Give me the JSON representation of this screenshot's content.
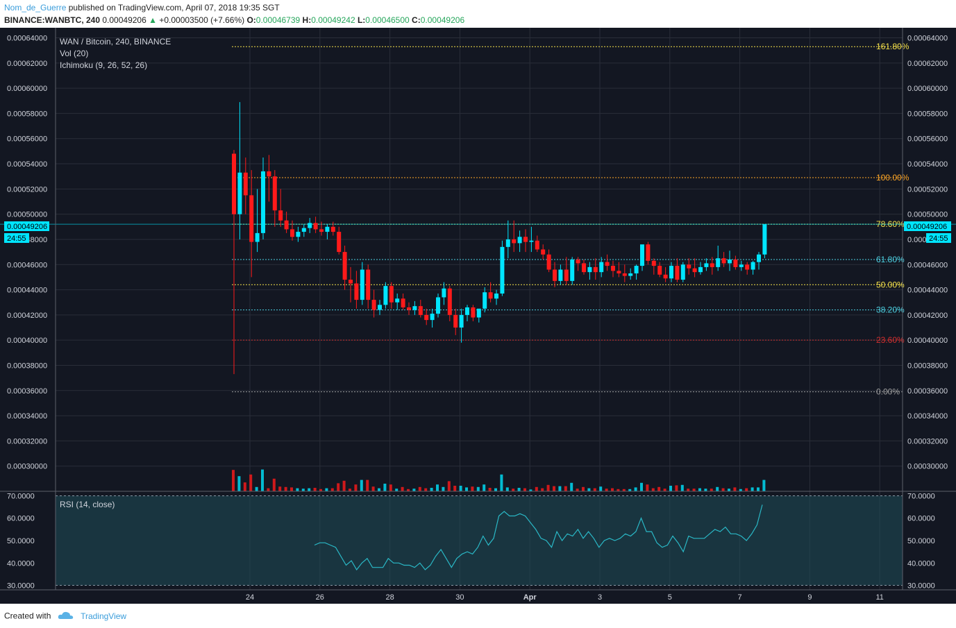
{
  "header": {
    "author": "Nom_de_Guerre",
    "published": "published on TradingView.com, April 07, 2018 19:35 SGT",
    "symbol": "BINANCE:WANBTC, 240",
    "last": "0.00049206",
    "change": "+0.00003500 (+7.66%)",
    "o_label": "O:",
    "o_value": "0.00046739",
    "h_label": "H:",
    "h_value": "0.00049242",
    "l_label": "L:",
    "l_value": "0.00046500",
    "c_label": "C:",
    "c_value": "0.00049206"
  },
  "legend": {
    "title": "WAN / Bitcoin, 240, BINANCE",
    "vol": "Vol (20)",
    "ichimoku": "Ichimoku (9, 26, 52, 26)",
    "rsi": "RSI (14, close)"
  },
  "price_badge": "0.00049206",
  "countdown": "24:55",
  "footer": {
    "created_with": "Created with",
    "brand": "TradingView"
  },
  "colors": {
    "background": "#131722",
    "grid": "#2a2e39",
    "up": "#00e5ff",
    "down": "#ff1a1a",
    "rsi_line": "#2ab8c6",
    "rsi_band": "#1f4f5a"
  },
  "chart_data": [
    {
      "type": "candlestick",
      "title": "WAN / Bitcoin, 240, BINANCE",
      "y_ticks": [
        "0.00064000",
        "0.00062000",
        "0.00060000",
        "0.00058000",
        "0.00056000",
        "0.00054000",
        "0.00052000",
        "0.00050000",
        "0.00048000",
        "0.00046000",
        "0.00044000",
        "0.00042000",
        "0.00040000",
        "0.00038000",
        "0.00036000",
        "0.00034000",
        "0.00032000",
        "0.00030000"
      ],
      "ylim": [
        0.00028,
        0.000648
      ],
      "x_ticks": [
        "24",
        "26",
        "28",
        "30",
        "Apr",
        "3",
        "5",
        "7",
        "9",
        "11"
      ],
      "fibonacci": [
        {
          "label": "161.80%",
          "price": 0.000633,
          "color": "#f5e14a"
        },
        {
          "label": "100.00%",
          "price": 0.000529,
          "color": "#ffa726"
        },
        {
          "label": "78.60%",
          "price": 0.000492,
          "color": "#f5e14a"
        },
        {
          "label": "61.80%",
          "price": 0.000464,
          "color": "#4dd0e1"
        },
        {
          "label": "50.00%",
          "price": 0.000444,
          "color": "#f5e14a"
        },
        {
          "label": "38.20%",
          "price": 0.000424,
          "color": "#4dd0e1"
        },
        {
          "label": "23.60%",
          "price": 0.0004,
          "color": "#d32f2f"
        },
        {
          "label": "0.00%",
          "price": 0.000359,
          "color": "#9e9e9e"
        }
      ],
      "candles": [
        [
          0.000548,
          0.000551,
          0.000373,
          0.0005
        ],
        [
          0.0005,
          0.000589,
          0.00048,
          0.000533
        ],
        [
          0.000533,
          0.000545,
          0.0005,
          0.000515
        ],
        [
          0.000515,
          0.000535,
          0.00045,
          0.000478
        ],
        [
          0.000478,
          0.00052,
          0.00047,
          0.000485
        ],
        [
          0.000485,
          0.000545,
          0.00048,
          0.000534
        ],
        [
          0.000534,
          0.000547,
          0.00051,
          0.00053
        ],
        [
          0.00053,
          0.000535,
          0.00049,
          0.000503
        ],
        [
          0.000503,
          0.00052,
          0.00049,
          0.000495
        ],
        [
          0.000495,
          0.000502,
          0.000485,
          0.000488
        ],
        [
          0.000488,
          0.000495,
          0.000479,
          0.000482
        ],
        [
          0.000482,
          0.00049,
          0.000478,
          0.000486
        ],
        [
          0.000486,
          0.000492,
          0.000482,
          0.000489
        ],
        [
          0.000489,
          0.000497,
          0.000485,
          0.000493
        ],
        [
          0.000493,
          0.000498,
          0.000485,
          0.000488
        ],
        [
          0.000488,
          0.000494,
          0.000483,
          0.000486
        ],
        [
          0.000486,
          0.000492,
          0.00048,
          0.00049
        ],
        [
          0.00049,
          0.000494,
          0.000483,
          0.000486
        ],
        [
          0.000486,
          0.00049,
          0.000468,
          0.00047
        ],
        [
          0.00047,
          0.000475,
          0.00044,
          0.000448
        ],
        [
          0.000448,
          0.000458,
          0.00043,
          0.000445
        ],
        [
          0.000445,
          0.000455,
          0.000425,
          0.000432
        ],
        [
          0.000432,
          0.000462,
          0.000428,
          0.000456
        ],
        [
          0.000456,
          0.00046,
          0.000425,
          0.000432
        ],
        [
          0.000432,
          0.00044,
          0.000418,
          0.000424
        ],
        [
          0.000424,
          0.000432,
          0.00042,
          0.000428
        ],
        [
          0.000428,
          0.000446,
          0.000425,
          0.000443
        ],
        [
          0.000443,
          0.000446,
          0.000425,
          0.00043
        ],
        [
          0.00043,
          0.000437,
          0.000424,
          0.000433
        ],
        [
          0.000433,
          0.000437,
          0.000424,
          0.000426
        ],
        [
          0.000426,
          0.00043,
          0.00042,
          0.000424
        ],
        [
          0.000424,
          0.000431,
          0.00042,
          0.000427
        ],
        [
          0.000427,
          0.000432,
          0.000418,
          0.00042
        ],
        [
          0.00042,
          0.000425,
          0.000412,
          0.000416
        ],
        [
          0.000416,
          0.000425,
          0.00041,
          0.000421
        ],
        [
          0.000421,
          0.000437,
          0.000418,
          0.000434
        ],
        [
          0.000434,
          0.000446,
          0.000428,
          0.000441
        ],
        [
          0.000441,
          0.000443,
          0.000415,
          0.00042
        ],
        [
          0.00042,
          0.000425,
          0.000404,
          0.00041
        ],
        [
          0.00041,
          0.000425,
          0.000398,
          0.00042
        ],
        [
          0.00042,
          0.000428,
          0.000415,
          0.000426
        ],
        [
          0.000426,
          0.000428,
          0.000415,
          0.000418
        ],
        [
          0.000418,
          0.000424,
          0.000414,
          0.000425
        ],
        [
          0.000425,
          0.000442,
          0.000422,
          0.000438
        ],
        [
          0.000438,
          0.000446,
          0.00043,
          0.000433
        ],
        [
          0.000433,
          0.00044,
          0.000428,
          0.000437
        ],
        [
          0.000437,
          0.000479,
          0.000435,
          0.000474
        ],
        [
          0.000474,
          0.000495,
          0.000465,
          0.00048
        ],
        [
          0.00048,
          0.000495,
          0.00047,
          0.000477
        ],
        [
          0.000477,
          0.000487,
          0.00047,
          0.000482
        ],
        [
          0.000482,
          0.000488,
          0.00047,
          0.000478
        ],
        [
          0.000478,
          0.00049,
          0.00047,
          0.000479
        ],
        [
          0.000479,
          0.000483,
          0.00047,
          0.000472
        ],
        [
          0.000472,
          0.000476,
          0.000464,
          0.000468
        ],
        [
          0.000468,
          0.000472,
          0.000454,
          0.000456
        ],
        [
          0.000456,
          0.000462,
          0.000442,
          0.000447
        ],
        [
          0.000447,
          0.00046,
          0.000444,
          0.000456
        ],
        [
          0.000456,
          0.000466,
          0.000444,
          0.000447
        ],
        [
          0.000447,
          0.000466,
          0.000444,
          0.000464
        ],
        [
          0.000464,
          0.000466,
          0.000455,
          0.000461
        ],
        [
          0.000461,
          0.000464,
          0.000452,
          0.000454
        ],
        [
          0.000454,
          0.000462,
          0.000448,
          0.000458
        ],
        [
          0.000458,
          0.000465,
          0.000448,
          0.000454
        ],
        [
          0.000454,
          0.000466,
          0.00045,
          0.000462
        ],
        [
          0.000462,
          0.000468,
          0.000455,
          0.000459
        ],
        [
          0.000459,
          0.000463,
          0.00045,
          0.000455
        ],
        [
          0.000455,
          0.000462,
          0.00045,
          0.000453
        ],
        [
          0.000453,
          0.00046,
          0.000446,
          0.000451
        ],
        [
          0.000451,
          0.000457,
          0.000448,
          0.000453
        ],
        [
          0.000453,
          0.00046,
          0.000448,
          0.000459
        ],
        [
          0.000459,
          0.000475,
          0.000455,
          0.000476
        ],
        [
          0.000476,
          0.000478,
          0.00046,
          0.000463
        ],
        [
          0.000463,
          0.000465,
          0.000452,
          0.000459
        ],
        [
          0.000459,
          0.000462,
          0.00045,
          0.000452
        ],
        [
          0.000452,
          0.000458,
          0.000446,
          0.000449
        ],
        [
          0.000449,
          0.000462,
          0.000446,
          0.000459
        ],
        [
          0.000459,
          0.000465,
          0.000446,
          0.000448
        ],
        [
          0.000448,
          0.000462,
          0.000446,
          0.00046
        ],
        [
          0.00046,
          0.000465,
          0.000452,
          0.000457
        ],
        [
          0.000457,
          0.000465,
          0.00045,
          0.000454
        ],
        [
          0.000454,
          0.000462,
          0.000452,
          0.000458
        ],
        [
          0.000458,
          0.000465,
          0.000455,
          0.000461
        ],
        [
          0.000461,
          0.000466,
          0.000452,
          0.000458
        ],
        [
          0.000458,
          0.000475,
          0.000455,
          0.000465
        ],
        [
          0.000465,
          0.00047,
          0.000458,
          0.000461
        ],
        [
          0.000461,
          0.000471,
          0.000455,
          0.000464
        ],
        [
          0.000464,
          0.000467,
          0.000456,
          0.000458
        ],
        [
          0.000458,
          0.000463,
          0.000455,
          0.00046
        ],
        [
          0.00046,
          0.000462,
          0.000452,
          0.000456
        ],
        [
          0.000456,
          0.000463,
          0.000452,
          0.000462
        ],
        [
          0.000462,
          0.00047,
          0.000456,
          0.000468
        ],
        [
          0.000468,
          0.000492,
          0.000465,
          0.000492
        ]
      ]
    },
    {
      "type": "line",
      "title": "RSI (14, close)",
      "y_ticks": [
        "70.0000",
        "60.0000",
        "50.0000",
        "40.0000",
        "30.0000"
      ],
      "ylim": [
        28,
        72
      ],
      "bands": [
        70,
        30
      ],
      "values": [
        48,
        49,
        49,
        48,
        47,
        43,
        39,
        41,
        37,
        40,
        42,
        38,
        38,
        38,
        42,
        40,
        40,
        39,
        39,
        38,
        40,
        37,
        39,
        43,
        46,
        42,
        38,
        42,
        44,
        45,
        44,
        47,
        52,
        48,
        51,
        61,
        63,
        61,
        61,
        62,
        61,
        58,
        55,
        51,
        50,
        47,
        54,
        50,
        53,
        52,
        55,
        51,
        54,
        51,
        47,
        50,
        51,
        50,
        51,
        53,
        52,
        54,
        60,
        54,
        54,
        49,
        47,
        48,
        52,
        49,
        45,
        52,
        51,
        51,
        51,
        53,
        55,
        54,
        56,
        53,
        53,
        52,
        50,
        53,
        57,
        66
      ]
    }
  ]
}
